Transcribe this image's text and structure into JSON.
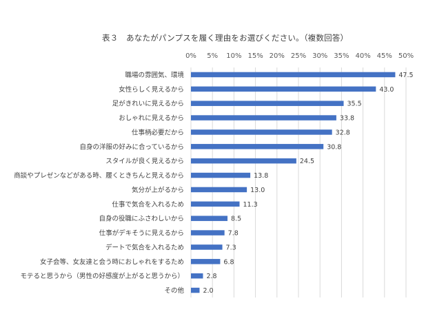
{
  "chart_data": {
    "type": "bar",
    "orientation": "horizontal",
    "title": "表３　あなたがパンプスを履く理由をお選びください。（複数回答）",
    "categories": [
      "職場の雰囲気、環境",
      "女性らしく見えるから",
      "足がきれいに見えるから",
      "おしゃれに見えるから",
      "仕事柄必要だから",
      "自身の洋服の好みに合っているから",
      "スタイルが良く見えるから",
      "商談やプレゼンなどがある時、履くときちんと見えるから",
      "気分が上がるから",
      "仕事で気合を入れるため",
      "自身の役職にふさわしいから",
      "仕事がデキそうに見えるから",
      "デートで気合を入れるため",
      "女子会等、女友達と会う時におしゃれをするため",
      "モテると思うから（男性の好感度が上がると思うから）",
      "その他"
    ],
    "values": [
      47.5,
      43.0,
      35.5,
      33.8,
      32.8,
      30.8,
      24.5,
      13.8,
      13.0,
      11.3,
      8.5,
      7.8,
      7.3,
      6.8,
      2.8,
      2.0
    ],
    "value_labels": [
      "47.5",
      "43.0",
      "35.5",
      "33.8",
      "32.8",
      "30.8",
      "24.5",
      "13.8",
      "13.0",
      "11.3",
      "8.5",
      "7.8",
      "7.3",
      "6.8",
      "2.8",
      "2.0"
    ],
    "xlim": [
      0,
      50
    ],
    "xticks": [
      0,
      5,
      10,
      15,
      20,
      25,
      30,
      35,
      40,
      45,
      50
    ],
    "xtick_labels": [
      "0%",
      "5%",
      "10%",
      "15%",
      "20%",
      "25%",
      "30%",
      "35%",
      "40%",
      "45%",
      "50%"
    ],
    "axis_position": "top",
    "grid": true,
    "legend": "none",
    "bar_color": "#4472c4",
    "grid_color": "#d9d9d9"
  }
}
